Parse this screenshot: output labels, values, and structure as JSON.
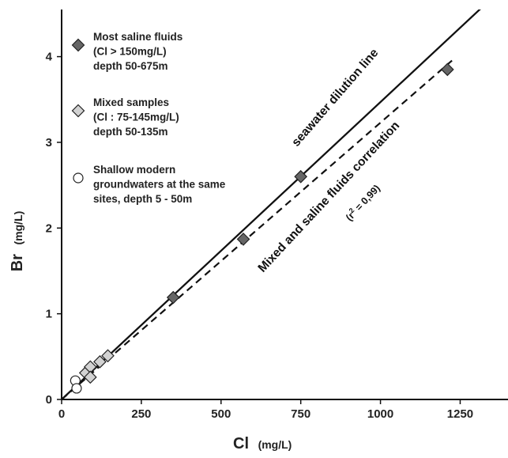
{
  "chart_data": {
    "type": "scatter",
    "xlabel": "Cl",
    "xunit": "(mg/L)",
    "ylabel": "Br",
    "yunit": "(mg/L)",
    "xlim": [
      0,
      1400
    ],
    "ylim": [
      0,
      4.55
    ],
    "xticks": [
      0,
      250,
      500,
      750,
      1000,
      1250
    ],
    "yticks": [
      0,
      1,
      2,
      3,
      4
    ],
    "grid": false,
    "legend_position": "top-left",
    "series": [
      {
        "name": "Most saline fluids (Cl > 150mg/L) depth 50-675m",
        "legend_lines": [
          "Most saline fluids",
          "(Cl > 150mg/L)",
          "depth 50-675m"
        ],
        "marker": "diamond",
        "color": "#666666",
        "x": [
          350,
          570,
          750,
          1210
        ],
        "y": [
          1.19,
          1.87,
          2.6,
          3.85
        ]
      },
      {
        "name": "Mixed samples (Cl : 75-145mg/L) depth 50-135m",
        "legend_lines": [
          "Mixed samples",
          "(Cl : 75-145mg/L)",
          "depth 50-135m"
        ],
        "marker": "diamond",
        "color": "#d2d2d2",
        "x": [
          75,
          90,
          90,
          120,
          145
        ],
        "y": [
          0.31,
          0.38,
          0.26,
          0.44,
          0.51
        ]
      },
      {
        "name": "Shallow modern groundwaters at the same sites, depth 5 - 50m",
        "legend_lines": [
          "Shallow modern",
          "groundwaters at the same",
          "sites, depth 5 - 50m"
        ],
        "marker": "circle",
        "color": "#ffffff",
        "x": [
          43,
          47
        ],
        "y": [
          0.22,
          0.13
        ]
      }
    ],
    "lines": [
      {
        "name": "seawater dilution line",
        "style": "solid",
        "slope": 0.00347,
        "x_range": [
          0,
          1400
        ]
      },
      {
        "name": "Mixed and saline fluids correlation",
        "style": "dashed",
        "slope": 0.00323,
        "x_range": [
          0,
          1225
        ]
      }
    ],
    "annotations": {
      "seawater": "seawater dilution line",
      "correlation": "Mixed and saline fluids correlation",
      "r2_prefix": "(r",
      "r2_sup": "2",
      "r2_suffix": " = 0,99)"
    }
  }
}
